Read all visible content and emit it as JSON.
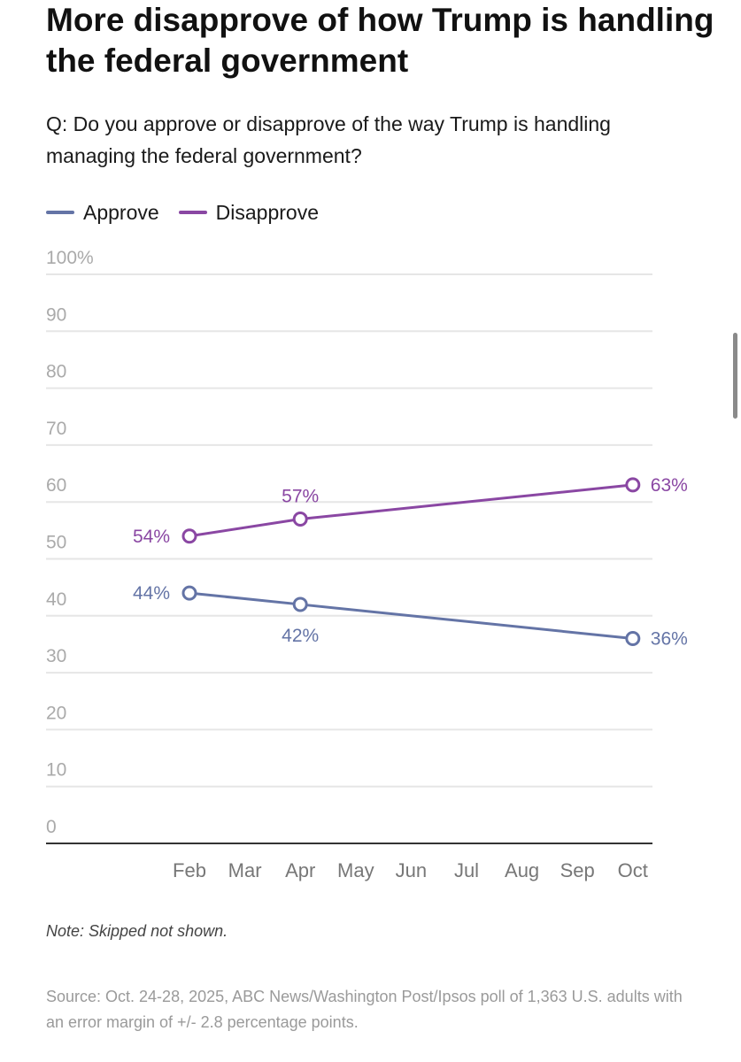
{
  "title": "More disapprove of how Trump is handling the federal government",
  "subtitle": "Q: Do you approve or disapprove of the way Trump is handling managing the federal government?",
  "colors": {
    "approve": "#6474a6",
    "disapprove": "#8a47a3",
    "grid": "#e6e6e6",
    "axis": "#333333",
    "tick": "#aaaaaa",
    "month": "#777777"
  },
  "chart_data": {
    "type": "line",
    "title": "More disapprove of how Trump is handling the federal government",
    "xlabel": "",
    "ylabel": "",
    "ylim": [
      0,
      100
    ],
    "y_ticks": [
      "0",
      "10",
      "20",
      "30",
      "40",
      "50",
      "60",
      "70",
      "80",
      "90",
      "100%"
    ],
    "categories": [
      "Feb",
      "Mar",
      "Apr",
      "May",
      "Jun",
      "Jul",
      "Aug",
      "Sep",
      "Oct"
    ],
    "series": [
      {
        "name": "Approve",
        "color": "#6474a6",
        "points": [
          {
            "x": "Feb",
            "y": 44,
            "label": "44%"
          },
          {
            "x": "Apr",
            "y": 42,
            "label": "42%"
          },
          {
            "x": "Oct",
            "y": 36,
            "label": "36%"
          }
        ]
      },
      {
        "name": "Disapprove",
        "color": "#8a47a3",
        "points": [
          {
            "x": "Feb",
            "y": 54,
            "label": "54%"
          },
          {
            "x": "Apr",
            "y": 57,
            "label": "57%"
          },
          {
            "x": "Oct",
            "y": 63,
            "label": "63%"
          }
        ]
      }
    ],
    "legend": "top-left",
    "grid": true
  },
  "note": "Note: Skipped not shown.",
  "source": "Source: Oct. 24-28, 2025, ABC News/Washington Post/Ipsos poll of 1,363 U.S. adults with an error margin of +/- 2.8 percentage points."
}
